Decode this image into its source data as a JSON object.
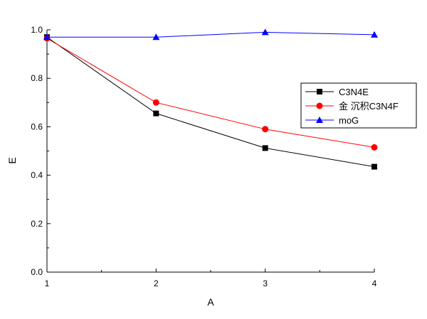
{
  "chart_data": {
    "type": "line",
    "title": "",
    "xlabel": "A",
    "ylabel": "E",
    "x": [
      1,
      2,
      3,
      4
    ],
    "xlim": [
      1,
      4
    ],
    "ylim": [
      0.0,
      1.0
    ],
    "xticks": [
      "1",
      "2",
      "3",
      "4"
    ],
    "yticks": [
      "0.0",
      "0.2",
      "0.4",
      "0.6",
      "0.8",
      "1.0"
    ],
    "grid": false,
    "legend_position": "right",
    "series": [
      {
        "name": "C3N4E",
        "values": [
          0.97,
          0.655,
          0.512,
          0.435
        ],
        "color": "#000000",
        "marker": "square"
      },
      {
        "name": "金 沉积C3N4F",
        "values": [
          0.965,
          0.7,
          0.59,
          0.515
        ],
        "color": "#ff0000",
        "marker": "circle"
      },
      {
        "name": "moG",
        "values": [
          0.97,
          0.97,
          0.99,
          0.98
        ],
        "color": "#0000ff",
        "marker": "triangle"
      }
    ]
  }
}
